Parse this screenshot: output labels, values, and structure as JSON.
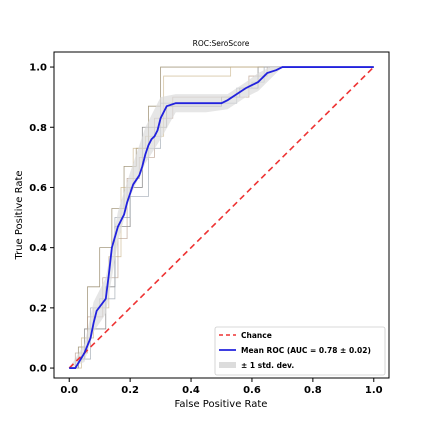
{
  "chart_data": {
    "type": "line",
    "title": "ROC:SeroScore",
    "xlabel": "False Positive Rate",
    "ylabel": "True Positive Rate",
    "xlim": [
      -0.05,
      1.05
    ],
    "ylim": [
      -0.033,
      1.05
    ],
    "xticks": [
      "0.0",
      "0.2",
      "0.4",
      "0.6",
      "0.8",
      "1.0"
    ],
    "yticks": [
      "0.0",
      "0.2",
      "0.4",
      "0.6",
      "0.8",
      "1.0"
    ],
    "grid": false,
    "legend_position": "lower-right",
    "series": [
      {
        "name": "Chance",
        "style": "dashed",
        "color": "#ee3333",
        "x": [
          0,
          1
        ],
        "y": [
          0,
          1
        ]
      },
      {
        "name": "Mean ROC (AUC = 0.78 ± 0.02)",
        "style": "solid",
        "color": "#2222dd",
        "x": [
          0.0,
          0.02,
          0.05,
          0.07,
          0.08,
          0.09,
          0.12,
          0.13,
          0.14,
          0.16,
          0.18,
          0.19,
          0.21,
          0.23,
          0.24,
          0.25,
          0.26,
          0.27,
          0.28,
          0.29,
          0.3,
          0.32,
          0.35,
          0.4,
          0.45,
          0.5,
          0.52,
          0.55,
          0.58,
          0.6,
          0.62,
          0.65,
          0.68,
          0.7,
          0.8,
          0.9,
          1.0
        ],
        "y": [
          0.0,
          0.0,
          0.05,
          0.1,
          0.15,
          0.19,
          0.23,
          0.31,
          0.4,
          0.47,
          0.51,
          0.55,
          0.61,
          0.64,
          0.67,
          0.71,
          0.74,
          0.76,
          0.77,
          0.79,
          0.83,
          0.87,
          0.88,
          0.88,
          0.88,
          0.88,
          0.89,
          0.91,
          0.93,
          0.94,
          0.95,
          0.98,
          0.99,
          1.0,
          1.0,
          1.0,
          1.0
        ]
      },
      {
        "name": "± 1 std. dev.",
        "style": "band",
        "color": "#dddddd",
        "x": [
          0.0,
          0.05,
          0.08,
          0.12,
          0.16,
          0.2,
          0.25,
          0.3,
          0.35,
          0.45,
          0.52,
          0.58,
          0.62,
          0.66,
          0.7,
          1.0
        ],
        "upper": [
          0.0,
          0.08,
          0.22,
          0.3,
          0.52,
          0.65,
          0.8,
          0.9,
          0.91,
          0.91,
          0.91,
          0.95,
          0.98,
          1.0,
          1.0,
          1.0
        ],
        "lower": [
          0.0,
          0.02,
          0.12,
          0.18,
          0.42,
          0.57,
          0.68,
          0.76,
          0.85,
          0.85,
          0.86,
          0.9,
          0.92,
          0.96,
          1.0,
          1.0
        ]
      }
    ],
    "fold_curves": [
      {
        "color": "#8a7a55",
        "x": [
          0,
          0.03,
          0.03,
          0.06,
          0.06,
          0.1,
          0.1,
          0.14,
          0.14,
          0.18,
          0.18,
          0.22,
          0.22,
          0.26,
          0.26,
          0.3,
          0.3,
          0.6,
          0.6,
          0.66,
          0.66,
          1.0
        ],
        "y": [
          0,
          0,
          0.07,
          0.07,
          0.27,
          0.27,
          0.4,
          0.4,
          0.53,
          0.53,
          0.67,
          0.67,
          0.73,
          0.73,
          0.87,
          0.87,
          1.0,
          1.0,
          1.0,
          1.0,
          1.0,
          1.0
        ]
      },
      {
        "color": "#6e6e6e",
        "x": [
          0,
          0.02,
          0.02,
          0.05,
          0.05,
          0.12,
          0.12,
          0.15,
          0.15,
          0.2,
          0.2,
          0.24,
          0.24,
          0.32,
          0.32,
          0.5,
          0.5,
          0.56,
          0.56,
          0.62,
          0.62,
          1.0
        ],
        "y": [
          0,
          0,
          0.03,
          0.03,
          0.13,
          0.13,
          0.27,
          0.27,
          0.47,
          0.47,
          0.6,
          0.6,
          0.8,
          0.8,
          0.87,
          0.87,
          0.9,
          0.9,
          0.93,
          0.93,
          1.0,
          1.0
        ]
      },
      {
        "color": "#c9b48a",
        "x": [
          0,
          0.04,
          0.04,
          0.08,
          0.08,
          0.13,
          0.13,
          0.17,
          0.17,
          0.21,
          0.21,
          0.25,
          0.25,
          0.31,
          0.31,
          0.53,
          0.53,
          0.63,
          0.63,
          0.68,
          0.68,
          1.0
        ],
        "y": [
          0,
          0,
          0.1,
          0.1,
          0.2,
          0.2,
          0.37,
          0.37,
          0.6,
          0.6,
          0.73,
          0.73,
          0.77,
          0.77,
          0.97,
          0.97,
          1.0,
          1.0,
          1.0,
          1.0,
          1.0,
          1.0
        ]
      },
      {
        "color": "#b59b8a",
        "x": [
          0,
          0.02,
          0.02,
          0.06,
          0.06,
          0.11,
          0.11,
          0.16,
          0.16,
          0.19,
          0.19,
          0.23,
          0.23,
          0.28,
          0.28,
          0.34,
          0.34,
          0.59,
          0.59,
          0.65,
          0.65,
          1.0
        ],
        "y": [
          0,
          0,
          0.05,
          0.05,
          0.17,
          0.17,
          0.3,
          0.3,
          0.43,
          0.43,
          0.63,
          0.63,
          0.7,
          0.7,
          0.83,
          0.83,
          0.9,
          0.9,
          0.97,
          0.97,
          1.0,
          1.0
        ]
      },
      {
        "color": "#9aa3ad",
        "x": [
          0,
          0.03,
          0.03,
          0.07,
          0.07,
          0.1,
          0.1,
          0.15,
          0.15,
          0.2,
          0.2,
          0.26,
          0.26,
          0.3,
          0.3,
          0.55,
          0.55,
          0.6,
          0.6,
          0.64,
          0.64,
          1.0
        ],
        "y": [
          0,
          0,
          0.03,
          0.03,
          0.2,
          0.2,
          0.23,
          0.23,
          0.5,
          0.5,
          0.57,
          0.57,
          0.73,
          0.73,
          0.88,
          0.88,
          0.93,
          0.93,
          0.95,
          0.95,
          1.0,
          1.0
        ]
      }
    ]
  }
}
